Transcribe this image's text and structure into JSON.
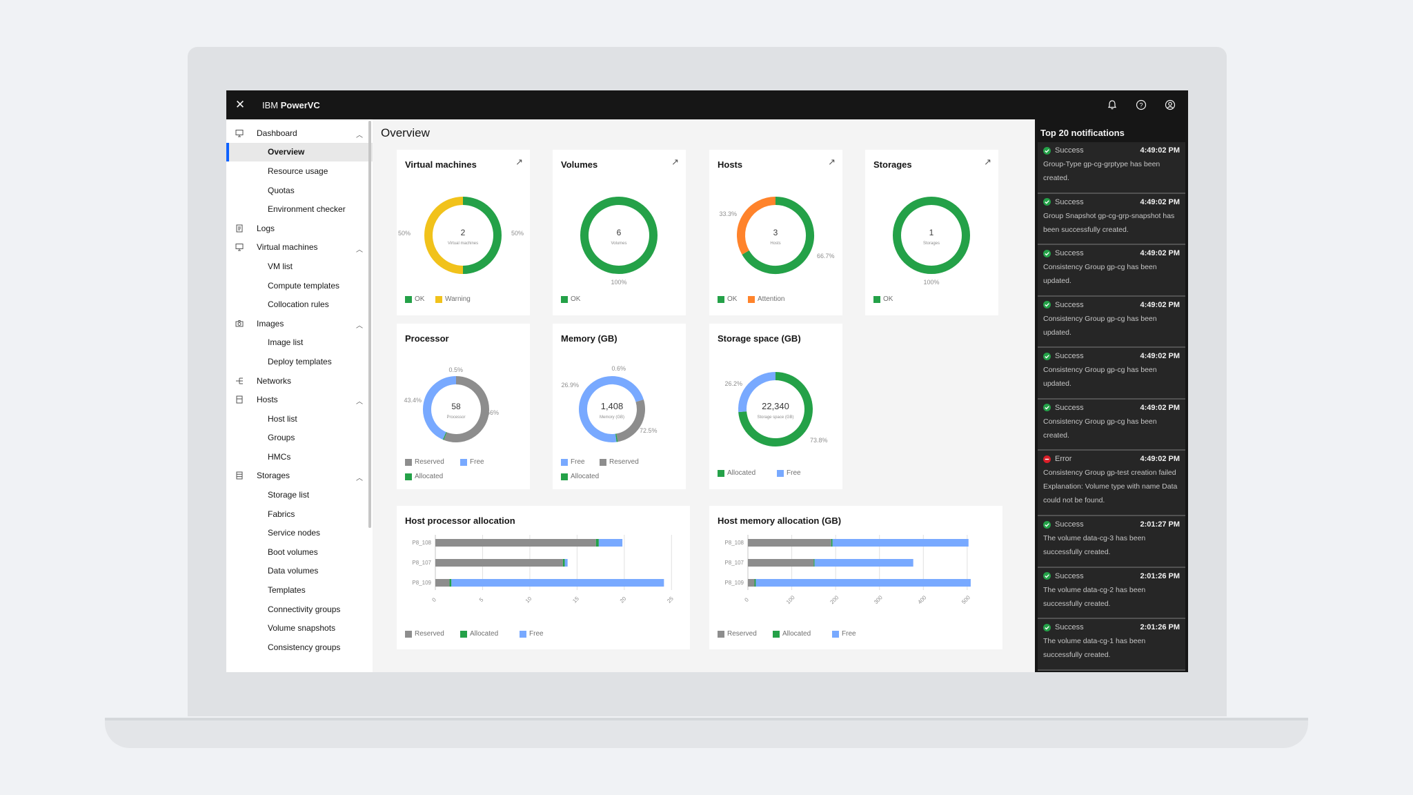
{
  "app": {
    "title_prefix": "IBM ",
    "title_bold": "PowerVC"
  },
  "header": {
    "icons": [
      "close-icon",
      "notification-bell-icon",
      "help-icon",
      "user-avatar-icon"
    ]
  },
  "sidebar": {
    "dashboard": {
      "label": "Dashboard",
      "items": [
        "Overview",
        "Resource usage",
        "Quotas",
        "Environment checker"
      ]
    },
    "logs": {
      "label": "Logs"
    },
    "vms": {
      "label": "Virtual machines",
      "items": [
        "VM list",
        "Compute templates",
        "Collocation rules"
      ]
    },
    "images": {
      "label": "Images",
      "items": [
        "Image list",
        "Deploy templates"
      ]
    },
    "networks": {
      "label": "Networks"
    },
    "hosts": {
      "label": "Hosts",
      "items": [
        "Host list",
        "Groups",
        "HMCs"
      ]
    },
    "storages": {
      "label": "Storages",
      "items": [
        "Storage list",
        "Fabrics",
        "Service nodes",
        "Boot volumes",
        "Data volumes",
        "Templates",
        "Connectivity groups",
        "Volume snapshots",
        "Consistency groups"
      ]
    }
  },
  "main": {
    "title": "Overview"
  },
  "colors": {
    "ok": "#24a148",
    "warning": "#f1c21b",
    "attention": "#ff832b",
    "free": "#78a9ff",
    "reserved": "#8d8d8d",
    "allocated": "#24a148",
    "error": "#da1e28",
    "nav_active": "#0f62fe"
  },
  "chart_data": [
    {
      "type": "donut",
      "title": "Virtual machines",
      "center_value": "2",
      "center_label": "Virtual machines",
      "slices": [
        {
          "name": "OK",
          "value": 50,
          "label": "50%"
        },
        {
          "name": "Warning",
          "value": 50,
          "label": "50%"
        }
      ]
    },
    {
      "type": "donut",
      "title": "Volumes",
      "center_value": "6",
      "center_label": "Volumes",
      "slices": [
        {
          "name": "OK",
          "value": 100,
          "label": "100%"
        }
      ]
    },
    {
      "type": "donut",
      "title": "Hosts",
      "center_value": "3",
      "center_label": "Hosts",
      "slices": [
        {
          "name": "OK",
          "value": 66.7,
          "label": "66.7%"
        },
        {
          "name": "Attention",
          "value": 33.3,
          "label": "33.3%"
        }
      ]
    },
    {
      "type": "donut",
      "title": "Storages",
      "center_value": "1",
      "center_label": "Storages",
      "slices": [
        {
          "name": "OK",
          "value": 100,
          "label": "100%"
        }
      ]
    },
    {
      "type": "donut",
      "title": "Processor",
      "center_value": "58",
      "center_label": "Processor",
      "legend": [
        "Reserved",
        "Free",
        "Allocated"
      ],
      "slices": [
        {
          "name": "Reserved",
          "value": 56,
          "label": "56%"
        },
        {
          "name": "Allocated",
          "value": 0.5,
          "label": "0.5%"
        },
        {
          "name": "Free",
          "value": 43.4,
          "label": "43.4%"
        }
      ]
    },
    {
      "type": "donut",
      "title": "Memory (GB)",
      "center_value": "1,408",
      "center_label": "Memory (GB)",
      "legend": [
        "Free",
        "Reserved",
        "Allocated"
      ],
      "slices": [
        {
          "name": "Free",
          "value": 72.5,
          "label": "72.5%"
        },
        {
          "name": "Reserved",
          "value": 26.9,
          "label": "26.9%"
        },
        {
          "name": "Allocated",
          "value": 0.6,
          "label": "0.6%"
        }
      ]
    },
    {
      "type": "donut",
      "title": "Storage space (GB)",
      "center_value": "22,340",
      "center_label": "Storage space (GB)",
      "legend": [
        "Allocated",
        "Free"
      ],
      "slices": [
        {
          "name": "Allocated",
          "value": 73.8,
          "label": "73.8%"
        },
        {
          "name": "Free",
          "value": 26.2,
          "label": "26.2%"
        }
      ]
    },
    {
      "type": "bar",
      "orientation": "horizontal",
      "stacked": true,
      "title": "Host processor allocation",
      "categories": [
        "P8_108",
        "P8_107",
        "P8_109"
      ],
      "series": [
        {
          "name": "Reserved",
          "values": [
            17,
            13.5,
            1.5
          ]
        },
        {
          "name": "Allocated",
          "values": [
            0.3,
            0.2,
            0.2
          ]
        },
        {
          "name": "Free",
          "values": [
            2.5,
            0.3,
            22.5
          ]
        }
      ],
      "xticks": [
        "0",
        "5",
        "10",
        "15",
        "20",
        "25"
      ],
      "xlim": [
        0,
        26
      ]
    },
    {
      "type": "bar",
      "orientation": "horizontal",
      "stacked": true,
      "title": "Host memory allocation (GB)",
      "categories": [
        "P8_108",
        "P8_107",
        "P8_109"
      ],
      "series": [
        {
          "name": "Reserved",
          "values": [
            190,
            150,
            15
          ]
        },
        {
          "name": "Allocated",
          "values": [
            3,
            2,
            3
          ]
        },
        {
          "name": "Free",
          "values": [
            310,
            225,
            490
          ]
        }
      ],
      "xticks": [
        "0",
        "100",
        "200",
        "300",
        "400",
        "500"
      ],
      "xlim": [
        0,
        560
      ]
    }
  ],
  "notifications": {
    "title": "Top 20 notifications",
    "items": [
      {
        "status": "Success",
        "time": "4:49:02 PM",
        "message": "Group-Type gp-cg-grptype has been created."
      },
      {
        "status": "Success",
        "time": "4:49:02 PM",
        "message": "Group Snapshot gp-cg-grp-snapshot has been successfully created."
      },
      {
        "status": "Success",
        "time": "4:49:02 PM",
        "message": "Consistency Group gp-cg has been updated."
      },
      {
        "status": "Success",
        "time": "4:49:02 PM",
        "message": "Consistency Group gp-cg has been updated."
      },
      {
        "status": "Success",
        "time": "4:49:02 PM",
        "message": "Consistency Group gp-cg has been updated."
      },
      {
        "status": "Success",
        "time": "4:49:02 PM",
        "message": "Consistency Group gp-cg has been created."
      },
      {
        "status": "Error",
        "time": "4:49:02 PM",
        "message": "Consistency Group gp-test creation failed Explanation: Volume type with name Data could not be found."
      },
      {
        "status": "Success",
        "time": "2:01:27 PM",
        "message": "The volume data-cg-3 has been successfully created."
      },
      {
        "status": "Success",
        "time": "2:01:26 PM",
        "message": "The volume data-cg-2 has been successfully created."
      },
      {
        "status": "Success",
        "time": "2:01:26 PM",
        "message": "The volume data-cg-1 has been successfully created."
      }
    ]
  }
}
